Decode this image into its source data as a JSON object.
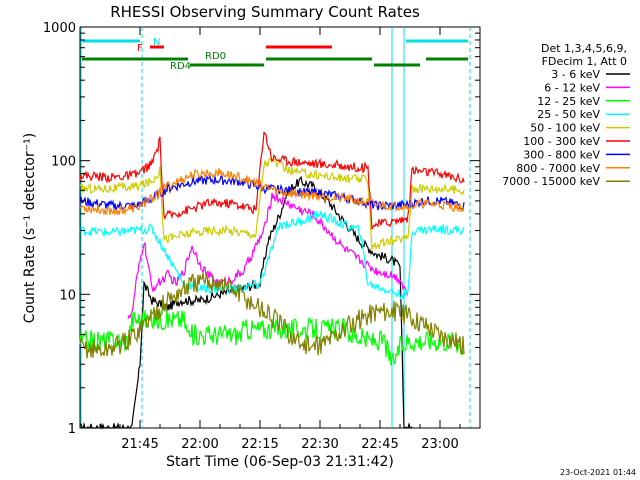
{
  "chart_data": {
    "type": "line",
    "title": "RHESSI Observing Summary Count Rates",
    "xlabel": "Start Time (06-Sep-03 21:31:42)",
    "ylabel": "Count Rate (s⁻¹ detector⁻¹)",
    "y_scale": "log",
    "ylim": [
      1,
      1000
    ],
    "xlim_minutes": [
      0,
      100
    ],
    "x_ticks": [
      "21:45",
      "22:00",
      "22:15",
      "22:30",
      "22:45",
      "23:00"
    ],
    "y_ticks": [
      "1",
      "10",
      "100",
      "1000"
    ],
    "legend": {
      "placement": "right",
      "header": [
        "Det 1,3,4,5,6,9,",
        "FDecim 1, Att 0"
      ]
    },
    "footer_date": "23-Oct-2021 01:44",
    "flags": [
      {
        "label": "N",
        "color": "#00e0e0"
      },
      {
        "label": "F",
        "color": "#ff0000"
      },
      {
        "label": "RD0",
        "color": "#008000"
      },
      {
        "label": "RD4",
        "color": "#008000"
      }
    ],
    "series": [
      {
        "name": "3 - 6 keV",
        "color": "#000000",
        "points": [
          [
            0,
            1
          ],
          [
            13,
            1
          ],
          [
            15,
            3
          ],
          [
            16,
            12
          ],
          [
            18,
            9
          ],
          [
            22,
            8
          ],
          [
            25,
            9
          ],
          [
            30,
            9
          ],
          [
            35,
            10
          ],
          [
            40,
            11
          ],
          [
            45,
            12
          ],
          [
            47,
            25
          ],
          [
            50,
            40
          ],
          [
            52,
            60
          ],
          [
            55,
            70
          ],
          [
            58,
            65
          ],
          [
            62,
            50
          ],
          [
            66,
            35
          ],
          [
            70,
            25
          ],
          [
            74,
            20
          ],
          [
            78,
            18
          ],
          [
            80,
            16
          ],
          [
            81,
            1
          ],
          [
            83,
            1
          ]
        ]
      },
      {
        "name": "6 - 12 keV",
        "color": "#ff00ff",
        "points": [
          [
            12,
            7
          ],
          [
            13,
            7
          ],
          [
            14,
            12
          ],
          [
            16,
            25
          ],
          [
            18,
            11
          ],
          [
            22,
            14
          ],
          [
            24,
            12
          ],
          [
            26,
            15
          ],
          [
            28,
            23
          ],
          [
            30,
            17
          ],
          [
            32,
            14
          ],
          [
            35,
            12
          ],
          [
            38,
            13
          ],
          [
            41,
            15
          ],
          [
            43,
            20
          ],
          [
            46,
            30
          ],
          [
            48,
            55
          ],
          [
            52,
            48
          ],
          [
            55,
            43
          ],
          [
            58,
            40
          ],
          [
            62,
            30
          ],
          [
            66,
            22
          ],
          [
            70,
            18
          ],
          [
            74,
            15
          ],
          [
            78,
            14
          ],
          [
            80,
            13
          ],
          [
            82,
            10
          ]
        ]
      },
      {
        "name": "12 - 25 keV",
        "color": "#00ff00",
        "points": [
          [
            0,
            4.5
          ],
          [
            8,
            4.5
          ],
          [
            12,
            4.5
          ],
          [
            13,
            6.5
          ],
          [
            20,
            6.5
          ],
          [
            26,
            6.5
          ],
          [
            27,
            5
          ],
          [
            40,
            5
          ],
          [
            41,
            5.5
          ],
          [
            46,
            5.5
          ],
          [
            50,
            5.5
          ],
          [
            56,
            5.5
          ],
          [
            66,
            5.5
          ],
          [
            68,
            5
          ],
          [
            72,
            4.5
          ],
          [
            76,
            4.5
          ],
          [
            78,
            3
          ],
          [
            80,
            4
          ],
          [
            82,
            4.5
          ],
          [
            86,
            4.5
          ],
          [
            94,
            4.5
          ],
          [
            96,
            4
          ]
        ]
      },
      {
        "name": "25 - 50 keV",
        "color": "#00ffff",
        "points": [
          [
            0,
            30
          ],
          [
            8,
            29
          ],
          [
            14,
            30
          ],
          [
            18,
            31
          ],
          [
            26,
            12
          ],
          [
            30,
            11
          ],
          [
            35,
            11
          ],
          [
            40,
            11
          ],
          [
            45,
            12
          ],
          [
            50,
            33
          ],
          [
            55,
            35
          ],
          [
            60,
            40
          ],
          [
            65,
            34
          ],
          [
            70,
            30
          ],
          [
            72,
            12
          ],
          [
            76,
            11
          ],
          [
            80,
            10
          ],
          [
            82,
            10
          ],
          [
            83,
            30
          ],
          [
            90,
            31
          ],
          [
            96,
            30
          ]
        ]
      },
      {
        "name": "50 - 100 keV",
        "color": "#cccc00",
        "points": [
          [
            0,
            62
          ],
          [
            8,
            62
          ],
          [
            14,
            64
          ],
          [
            18,
            70
          ],
          [
            20,
            85
          ],
          [
            21,
            26
          ],
          [
            26,
            28
          ],
          [
            32,
            30
          ],
          [
            38,
            30
          ],
          [
            44,
            28
          ],
          [
            46,
            95
          ],
          [
            48,
            100
          ],
          [
            52,
            85
          ],
          [
            56,
            80
          ],
          [
            60,
            78
          ],
          [
            65,
            74
          ],
          [
            72,
            72
          ],
          [
            73,
            23
          ],
          [
            78,
            25
          ],
          [
            82,
            27
          ],
          [
            83,
            62
          ],
          [
            90,
            62
          ],
          [
            96,
            60
          ]
        ]
      },
      {
        "name": "100 - 300 keV",
        "color": "#ff0000",
        "points": [
          [
            0,
            78
          ],
          [
            8,
            75
          ],
          [
            14,
            78
          ],
          [
            18,
            95
          ],
          [
            20,
            140
          ],
          [
            21,
            38
          ],
          [
            26,
            42
          ],
          [
            32,
            48
          ],
          [
            38,
            48
          ],
          [
            44,
            43
          ],
          [
            46,
            170
          ],
          [
            48,
            105
          ],
          [
            52,
            100
          ],
          [
            56,
            97
          ],
          [
            60,
            94
          ],
          [
            65,
            92
          ],
          [
            72,
            88
          ],
          [
            73,
            33
          ],
          [
            78,
            35
          ],
          [
            82,
            37
          ],
          [
            83,
            85
          ],
          [
            90,
            80
          ],
          [
            96,
            72
          ]
        ]
      },
      {
        "name": "300 - 800 keV",
        "color": "#0000ff",
        "points": [
          [
            0,
            50
          ],
          [
            8,
            46
          ],
          [
            14,
            46
          ],
          [
            18,
            52
          ],
          [
            22,
            62
          ],
          [
            28,
            70
          ],
          [
            34,
            72
          ],
          [
            40,
            70
          ],
          [
            46,
            62
          ],
          [
            52,
            60
          ],
          [
            56,
            58
          ],
          [
            62,
            56
          ],
          [
            70,
            50
          ],
          [
            74,
            46
          ],
          [
            78,
            46
          ],
          [
            82,
            47
          ],
          [
            86,
            50
          ],
          [
            90,
            50
          ],
          [
            96,
            46
          ]
        ]
      },
      {
        "name": "800 - 7000 keV",
        "color": "#ff8000",
        "points": [
          [
            0,
            45
          ],
          [
            8,
            42
          ],
          [
            14,
            44
          ],
          [
            18,
            52
          ],
          [
            22,
            65
          ],
          [
            28,
            78
          ],
          [
            34,
            82
          ],
          [
            40,
            75
          ],
          [
            44,
            68
          ],
          [
            50,
            58
          ],
          [
            56,
            56
          ],
          [
            62,
            54
          ],
          [
            70,
            50
          ],
          [
            74,
            47
          ],
          [
            78,
            46
          ],
          [
            82,
            46
          ],
          [
            86,
            48
          ],
          [
            90,
            47
          ],
          [
            96,
            44
          ]
        ]
      },
      {
        "name": "7000 - 15000 keV",
        "color": "#808000",
        "points": [
          [
            0,
            4
          ],
          [
            6,
            3.8
          ],
          [
            12,
            4.5
          ],
          [
            16,
            6
          ],
          [
            22,
            9
          ],
          [
            28,
            12
          ],
          [
            34,
            12.5
          ],
          [
            38,
            11
          ],
          [
            42,
            9
          ],
          [
            46,
            7.5
          ],
          [
            50,
            6
          ],
          [
            54,
            4.5
          ],
          [
            58,
            4
          ],
          [
            62,
            4.5
          ],
          [
            66,
            5.5
          ],
          [
            70,
            6.5
          ],
          [
            74,
            7.5
          ],
          [
            78,
            7.5
          ],
          [
            82,
            7
          ],
          [
            86,
            6
          ],
          [
            90,
            5
          ],
          [
            94,
            4.5
          ],
          [
            96,
            4
          ]
        ]
      }
    ]
  }
}
